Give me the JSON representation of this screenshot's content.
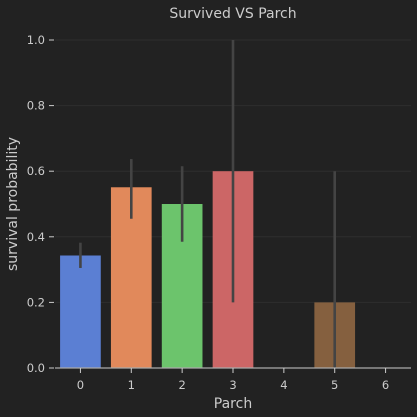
{
  "chart_data": {
    "type": "bar",
    "title": "Survived VS Parch",
    "xlabel": "Parch",
    "ylabel": "survival probability",
    "categories": [
      "0",
      "1",
      "2",
      "3",
      "4",
      "5",
      "6"
    ],
    "values": [
      0.343,
      0.551,
      0.5,
      0.6,
      0,
      0.2,
      0
    ],
    "ci_low": [
      0.305,
      0.455,
      0.385,
      0.2,
      null,
      0.0,
      null
    ],
    "ci_high": [
      0.382,
      0.637,
      0.615,
      1.0,
      null,
      0.6,
      null
    ],
    "bar_colors": [
      "#5b7fd3",
      "#e1895b",
      "#6cc46c",
      "#cc6666",
      "#9b7fbf",
      "#85603f",
      "#d98fcb"
    ],
    "ylim": [
      0,
      1.0
    ],
    "yticks": [
      "0.0",
      "0.2",
      "0.4",
      "0.6",
      "0.8",
      "1.0"
    ],
    "grid": true
  }
}
